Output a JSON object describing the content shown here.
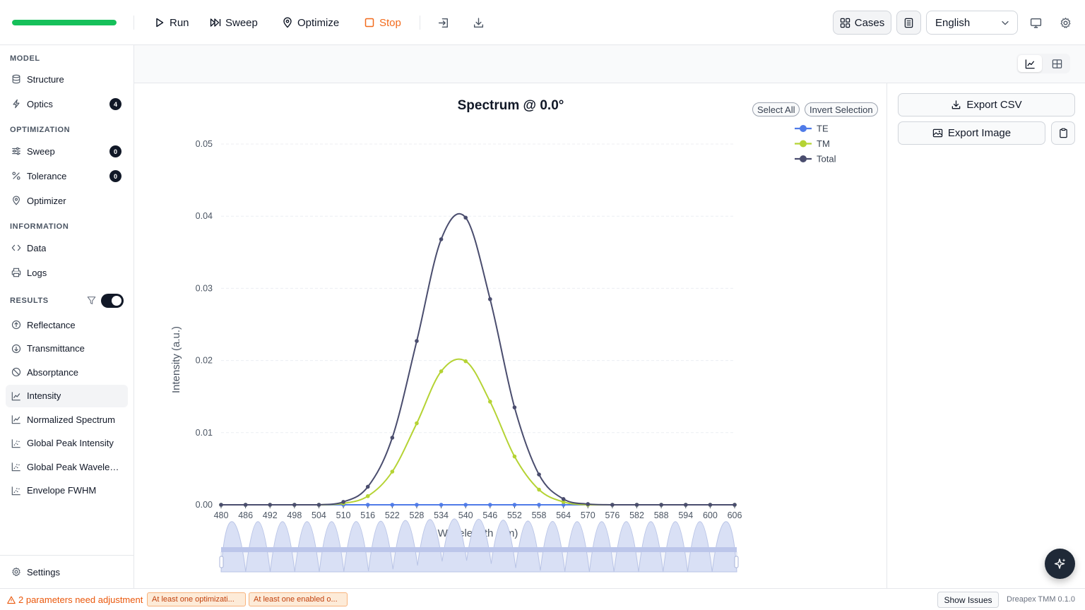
{
  "toolbar": {
    "progress": 1.0,
    "run_label": "Run",
    "sweep_label": "Sweep",
    "optimize_label": "Optimize",
    "stop_label": "Stop",
    "import_icon": "import-icon",
    "download_icon": "download-icon",
    "cases_label": "Cases",
    "language": "English",
    "stop_color": "#f26a1b",
    "progress_color": "#16c05a"
  },
  "sidebar": {
    "model_title": "MODEL",
    "structure": "Structure",
    "optics": "Optics",
    "optics_badge": "4",
    "optimization_title": "OPTIMIZATION",
    "sweep": "Sweep",
    "sweep_badge": "0",
    "tolerance": "Tolerance",
    "tolerance_badge": "0",
    "optimizer": "Optimizer",
    "information_title": "INFORMATION",
    "data": "Data",
    "logs": "Logs",
    "results_title": "RESULTS",
    "results": [
      "Reflectance",
      "Transmittance",
      "Absorptance",
      "Intensity",
      "Normalized Spectrum",
      "Global Peak Intensity",
      "Global Peak Wavelen...",
      "Envelope FWHM"
    ],
    "active_result": "Intensity",
    "settings": "Settings"
  },
  "legend": {
    "select_all": "Select All",
    "invert_selection": "Invert Selection"
  },
  "right_panel": {
    "export_csv": "Export CSV",
    "export_image": "Export Image"
  },
  "chart_data": {
    "type": "line",
    "title": "Spectrum @ 0.0°",
    "xlabel": "Wavelength (nm)",
    "ylabel": "Intensity (a.u.)",
    "xlim": [
      480,
      606
    ],
    "ylim": [
      0,
      0.05
    ],
    "x_ticks": [
      "480",
      "486",
      "492",
      "498",
      "504",
      "510",
      "516",
      "522",
      "528",
      "534",
      "540",
      "546",
      "552",
      "558",
      "564",
      "570",
      "576",
      "582",
      "588",
      "594",
      "600",
      "606"
    ],
    "y_ticks": [
      "0.00",
      "0.01",
      "0.02",
      "0.03",
      "0.04",
      "0.05"
    ],
    "grid": true,
    "legend_position": "top-right",
    "series": [
      {
        "name": "TE",
        "color": "#4f7be8",
        "x": [
          480,
          486,
          492,
          498,
          504,
          510,
          516,
          522,
          528,
          534,
          540,
          546,
          552,
          558,
          564,
          570,
          576,
          582,
          588,
          594,
          600,
          606
        ],
        "y": [
          0,
          0,
          0,
          0,
          0,
          0,
          0,
          0,
          0,
          0,
          0,
          0,
          0,
          0,
          0,
          0,
          0,
          0,
          0,
          0,
          0,
          0
        ]
      },
      {
        "name": "TM",
        "color": "#b5d334",
        "x": [
          480,
          486,
          492,
          498,
          504,
          510,
          516,
          522,
          528,
          534,
          540,
          546,
          552,
          558,
          564,
          570,
          576,
          582,
          588,
          594,
          600,
          606
        ],
        "y": [
          0,
          0,
          0,
          0,
          0,
          0.0002,
          0.0012,
          0.0046,
          0.0113,
          0.0185,
          0.0199,
          0.0143,
          0.0067,
          0.0021,
          0.0004,
          0,
          0,
          0,
          0,
          0,
          0,
          0
        ]
      },
      {
        "name": "Total",
        "color": "#4a4d6e",
        "x": [
          480,
          486,
          492,
          498,
          504,
          510,
          516,
          522,
          528,
          534,
          540,
          546,
          552,
          558,
          564,
          570,
          576,
          582,
          588,
          594,
          600,
          606
        ],
        "y": [
          0,
          0,
          0,
          0,
          0,
          0.0004,
          0.0025,
          0.0093,
          0.0227,
          0.0368,
          0.0398,
          0.0285,
          0.0135,
          0.0042,
          0.0008,
          0.0001,
          0,
          0,
          0,
          0,
          0,
          0
        ]
      }
    ]
  },
  "statusbar": {
    "warning": "2 parameters need adjustment",
    "chip1": "At least one optimizati...",
    "chip2": "At least one enabled o...",
    "show_issues": "Show Issues",
    "version": "Dreapex TMM 0.1.0"
  }
}
